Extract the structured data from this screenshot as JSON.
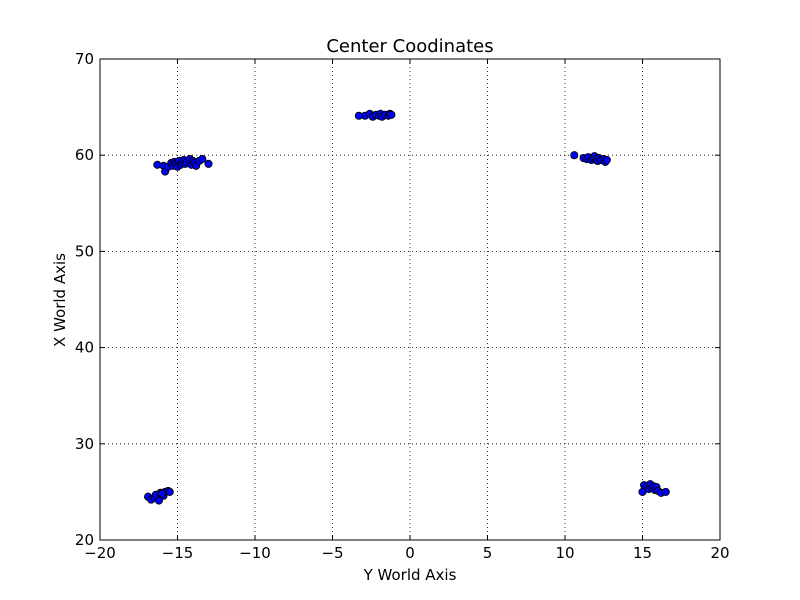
{
  "chart_data": {
    "type": "scatter",
    "title": "Center Coodinates",
    "xlabel": "Y World Axis",
    "ylabel": "X World Axis",
    "xlim": [
      -20,
      20
    ],
    "ylim": [
      20,
      70
    ],
    "xticks": [
      -20,
      -15,
      -10,
      -5,
      0,
      5,
      10,
      15,
      20
    ],
    "xtick_labels": [
      "−20",
      "−15",
      "−10",
      "−5",
      "0",
      "5",
      "10",
      "15",
      "20"
    ],
    "yticks": [
      20,
      30,
      40,
      50,
      60,
      70
    ],
    "ytick_labels": [
      "20",
      "30",
      "40",
      "50",
      "60",
      "70"
    ],
    "grid": true,
    "marker_color": "#0000ff",
    "marker_edge_color": "#000000",
    "series": [
      {
        "points": [
          [
            -16.3,
            59.0
          ],
          [
            -15.9,
            58.9
          ],
          [
            -15.8,
            58.3
          ],
          [
            -15.6,
            58.8
          ],
          [
            -15.4,
            59.2
          ],
          [
            -15.3,
            58.9
          ],
          [
            -15.2,
            59.3
          ],
          [
            -15.1,
            59.1
          ],
          [
            -15.0,
            58.8
          ],
          [
            -14.9,
            59.4
          ],
          [
            -14.8,
            59.0
          ],
          [
            -14.7,
            59.2
          ],
          [
            -14.6,
            59.5
          ],
          [
            -14.5,
            59.1
          ],
          [
            -14.4,
            59.3
          ],
          [
            -14.2,
            59.6
          ],
          [
            -14.1,
            59.0
          ],
          [
            -14.0,
            59.4
          ],
          [
            -13.9,
            59.2
          ],
          [
            -13.8,
            58.9
          ],
          [
            -13.6,
            59.4
          ],
          [
            -13.4,
            59.6
          ],
          [
            -13.0,
            59.1
          ],
          [
            -2.9,
            64.1
          ],
          [
            -2.6,
            64.3
          ],
          [
            -2.4,
            64.0
          ],
          [
            -2.2,
            64.2
          ],
          [
            -2.0,
            64.1
          ],
          [
            -1.9,
            64.3
          ],
          [
            -1.8,
            64.0
          ],
          [
            -1.6,
            64.2
          ],
          [
            -1.4,
            64.1
          ],
          [
            -1.3,
            64.3
          ],
          [
            -1.2,
            64.2
          ],
          [
            -3.3,
            64.1
          ],
          [
            10.6,
            60.0
          ],
          [
            11.2,
            59.7
          ],
          [
            11.4,
            59.6
          ],
          [
            11.5,
            59.8
          ],
          [
            11.7,
            59.5
          ],
          [
            11.8,
            59.7
          ],
          [
            11.9,
            59.9
          ],
          [
            12.0,
            59.6
          ],
          [
            12.1,
            59.4
          ],
          [
            12.2,
            59.7
          ],
          [
            12.3,
            59.5
          ],
          [
            12.5,
            59.6
          ],
          [
            12.6,
            59.3
          ],
          [
            12.7,
            59.5
          ],
          [
            -16.9,
            24.5
          ],
          [
            -16.7,
            24.2
          ],
          [
            -16.5,
            24.4
          ],
          [
            -16.4,
            24.7
          ],
          [
            -16.2,
            24.1
          ],
          [
            -16.1,
            24.9
          ],
          [
            -15.9,
            24.6
          ],
          [
            -15.8,
            25.0
          ],
          [
            -15.6,
            25.1
          ],
          [
            -15.5,
            25.0
          ],
          [
            -16.0,
            24.8
          ],
          [
            15.0,
            25.0
          ],
          [
            15.1,
            25.7
          ],
          [
            15.3,
            25.6
          ],
          [
            15.4,
            25.3
          ],
          [
            15.5,
            25.8
          ],
          [
            15.6,
            25.4
          ],
          [
            15.7,
            25.6
          ],
          [
            15.8,
            25.2
          ],
          [
            15.9,
            25.5
          ],
          [
            16.0,
            25.1
          ],
          [
            16.2,
            24.9
          ],
          [
            16.5,
            25.0
          ]
        ]
      }
    ]
  }
}
